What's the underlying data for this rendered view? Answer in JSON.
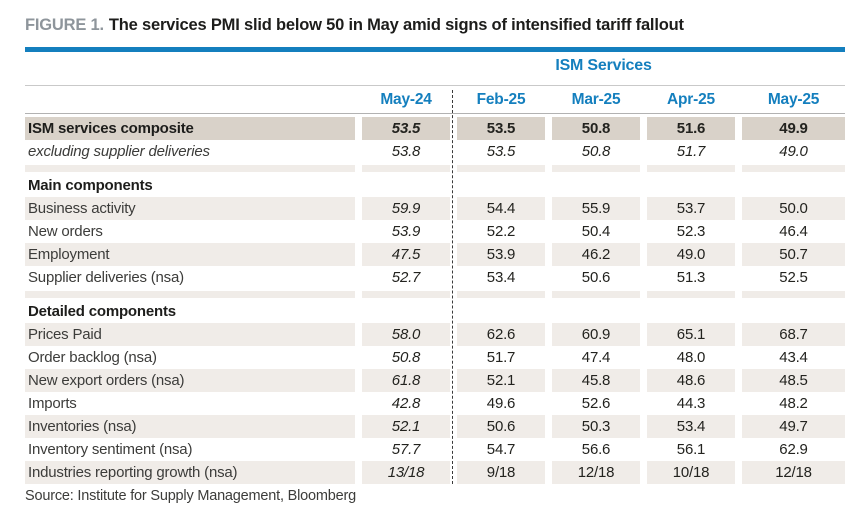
{
  "figure": {
    "label": "FIGURE 1.",
    "title": "The services PMI slid below 50 in May amid signs of intensified tariff fallout"
  },
  "source": "Source: Institute for Supply Management, Bloomberg",
  "colors": {
    "accent_blue": "#147fbe",
    "figure_label_gray": "#8e959b",
    "composite_row_bg": "#d9d2c9",
    "stripe_row_bg": "#f0ece8",
    "text_dark": "#1d1d1b",
    "label_gray": "#3c3c3a"
  },
  "chart_data": {
    "type": "table",
    "group_header": "ISM Services",
    "columns": [
      "May-24",
      "Feb-25",
      "Mar-25",
      "Apr-25",
      "May-25"
    ],
    "rows": [
      {
        "label": "ISM services composite",
        "style": "composite",
        "values": [
          "53.5",
          "53.5",
          "50.8",
          "51.6",
          "49.9"
        ]
      },
      {
        "label": "excluding supplier deliveries",
        "style": "italic",
        "values": [
          "53.8",
          "53.5",
          "50.8",
          "51.7",
          "49.0"
        ]
      },
      {
        "label": "Main components",
        "style": "section",
        "values": [
          "",
          "",
          "",
          "",
          ""
        ]
      },
      {
        "label": "Business activity",
        "style": "stripe",
        "values": [
          "59.9",
          "54.4",
          "55.9",
          "53.7",
          "50.0"
        ]
      },
      {
        "label": "New orders",
        "style": "plain",
        "values": [
          "53.9",
          "52.2",
          "50.4",
          "52.3",
          "46.4"
        ]
      },
      {
        "label": "Employment",
        "style": "stripe",
        "values": [
          "47.5",
          "53.9",
          "46.2",
          "49.0",
          "50.7"
        ]
      },
      {
        "label": "Supplier deliveries (nsa)",
        "style": "plain",
        "values": [
          "52.7",
          "53.4",
          "50.6",
          "51.3",
          "52.5"
        ]
      },
      {
        "label": "Detailed components",
        "style": "section",
        "values": [
          "",
          "",
          "",
          "",
          ""
        ]
      },
      {
        "label": "Prices Paid",
        "style": "stripe",
        "values": [
          "58.0",
          "62.6",
          "60.9",
          "65.1",
          "68.7"
        ]
      },
      {
        "label": "Order backlog (nsa)",
        "style": "plain",
        "values": [
          "50.8",
          "51.7",
          "47.4",
          "48.0",
          "43.4"
        ]
      },
      {
        "label": "New export orders (nsa)",
        "style": "stripe",
        "values": [
          "61.8",
          "52.1",
          "45.8",
          "48.6",
          "48.5"
        ]
      },
      {
        "label": "Imports",
        "style": "plain",
        "values": [
          "42.8",
          "49.6",
          "52.6",
          "44.3",
          "48.2"
        ]
      },
      {
        "label": "Inventories (nsa)",
        "style": "stripe",
        "values": [
          "52.1",
          "50.6",
          "50.3",
          "53.4",
          "49.7"
        ]
      },
      {
        "label": "Inventory sentiment (nsa)",
        "style": "plain",
        "values": [
          "57.7",
          "54.7",
          "56.6",
          "56.1",
          "62.9"
        ]
      },
      {
        "label": "Industries reporting growth (nsa)",
        "style": "stripe",
        "values": [
          "13/18",
          "9/18",
          "12/18",
          "10/18",
          "12/18"
        ]
      }
    ]
  }
}
